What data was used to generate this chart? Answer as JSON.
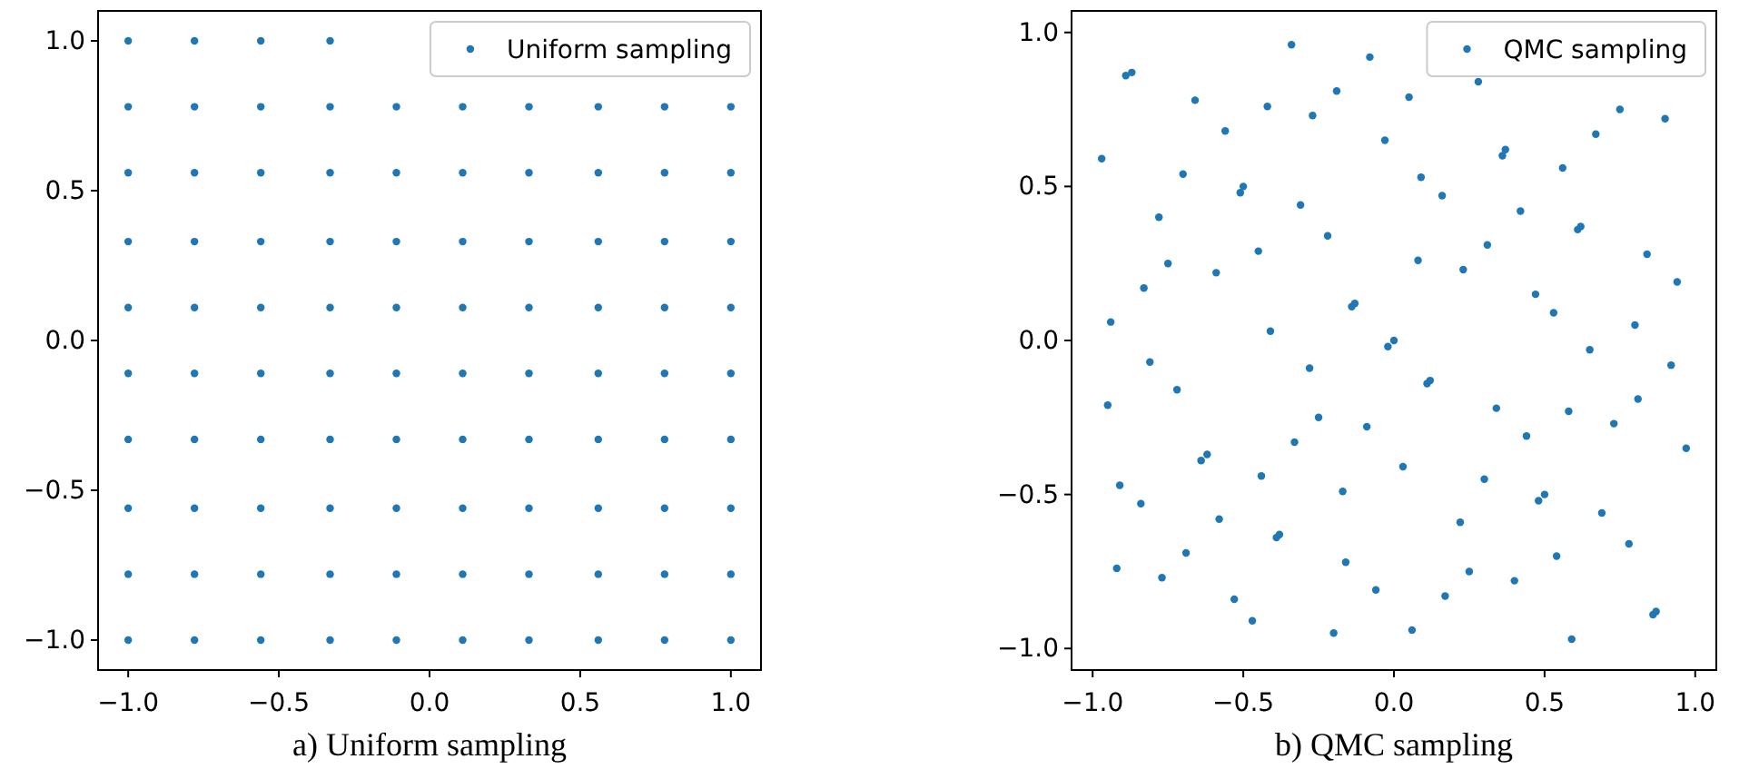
{
  "chart_data": [
    {
      "type": "scatter",
      "title": "a) Uniform sampling",
      "legend": "top right",
      "marker": "circle",
      "grid": false,
      "xlim": [
        -1.1,
        1.1
      ],
      "ylim": [
        -1.1,
        1.1
      ],
      "xticks": [
        {
          "value": -1,
          "label": "−1.0"
        },
        {
          "value": -0.5,
          "label": "−0.5"
        },
        {
          "value": 0,
          "label": "0.0"
        },
        {
          "value": 0.5,
          "label": "0.5"
        },
        {
          "value": 1,
          "label": "1.0"
        }
      ],
      "yticks": [
        {
          "value": -1,
          "label": "−1.0"
        },
        {
          "value": -0.5,
          "label": "−0.5"
        },
        {
          "value": 0,
          "label": "0.0"
        },
        {
          "value": 0.5,
          "label": "0.5"
        },
        {
          "value": 1,
          "label": "1.0"
        }
      ],
      "series": [
        {
          "name": "Uniform sampling",
          "color": "#1f77b4",
          "x": [
            -1,
            -0.78,
            -0.56,
            -0.33,
            -1,
            -0.78,
            -0.56,
            -0.33,
            -0.11,
            0.11,
            0.33,
            0.56,
            0.78,
            1,
            -1,
            -0.78,
            -0.56,
            -0.33,
            -0.11,
            0.11,
            0.33,
            0.56,
            0.78,
            1,
            -1,
            -0.78,
            -0.56,
            -0.33,
            -0.11,
            0.11,
            0.33,
            0.56,
            0.78,
            1,
            -1,
            -0.78,
            -0.56,
            -0.33,
            -0.11,
            0.11,
            0.33,
            0.56,
            0.78,
            1,
            -1,
            -0.78,
            -0.56,
            -0.33,
            -0.11,
            0.11,
            0.33,
            0.56,
            0.78,
            1,
            -1,
            -0.78,
            -0.56,
            -0.33,
            -0.11,
            0.11,
            0.33,
            0.56,
            0.78,
            1,
            -1,
            -0.78,
            -0.56,
            -0.33,
            -0.11,
            0.11,
            0.33,
            0.56,
            0.78,
            1,
            -1,
            -0.78,
            -0.56,
            -0.33,
            -0.11,
            0.11,
            0.33,
            0.56,
            0.78,
            1,
            -1,
            -0.78,
            -0.56,
            -0.33,
            -0.11,
            0.11,
            0.33,
            0.56,
            0.78,
            1
          ],
          "values": [
            1,
            1,
            1,
            1,
            0.78,
            0.78,
            0.78,
            0.78,
            0.78,
            0.78,
            0.78,
            0.78,
            0.78,
            0.78,
            0.56,
            0.56,
            0.56,
            0.56,
            0.56,
            0.56,
            0.56,
            0.56,
            0.56,
            0.56,
            0.33,
            0.33,
            0.33,
            0.33,
            0.33,
            0.33,
            0.33,
            0.33,
            0.33,
            0.33,
            0.11,
            0.11,
            0.11,
            0.11,
            0.11,
            0.11,
            0.11,
            0.11,
            0.11,
            0.11,
            -0.11,
            -0.11,
            -0.11,
            -0.11,
            -0.11,
            -0.11,
            -0.11,
            -0.11,
            -0.11,
            -0.11,
            -0.33,
            -0.33,
            -0.33,
            -0.33,
            -0.33,
            -0.33,
            -0.33,
            -0.33,
            -0.33,
            -0.33,
            -0.56,
            -0.56,
            -0.56,
            -0.56,
            -0.56,
            -0.56,
            -0.56,
            -0.56,
            -0.56,
            -0.56,
            -0.78,
            -0.78,
            -0.78,
            -0.78,
            -0.78,
            -0.78,
            -0.78,
            -0.78,
            -0.78,
            -0.78,
            -1,
            -1,
            -1,
            -1,
            -1,
            -1,
            -1,
            -1,
            -1,
            -1
          ]
        }
      ]
    },
    {
      "type": "scatter",
      "title": "b) QMC sampling",
      "legend": "top right",
      "marker": "circle",
      "grid": false,
      "xlim": [
        -1.07,
        1.07
      ],
      "ylim": [
        -1.07,
        1.07
      ],
      "xticks": [
        {
          "value": -1,
          "label": "−1.0"
        },
        {
          "value": -0.5,
          "label": "−0.5"
        },
        {
          "value": 0,
          "label": "0.0"
        },
        {
          "value": 0.5,
          "label": "0.5"
        },
        {
          "value": 1,
          "label": "1.0"
        }
      ],
      "yticks": [
        {
          "value": -1,
          "label": "−1.0"
        },
        {
          "value": -0.5,
          "label": "−0.5"
        },
        {
          "value": 0,
          "label": "0.0"
        },
        {
          "value": 0.5,
          "label": "0.5"
        },
        {
          "value": 1,
          "label": "1.0"
        }
      ],
      "series": [
        {
          "name": "QMC sampling",
          "color": "#1f77b4",
          "x": [
            -0.97,
            -0.94,
            -0.89,
            -0.87,
            -0.83,
            -0.78,
            -0.75,
            -0.7,
            -0.66,
            -0.59,
            -0.56,
            -0.51,
            -0.5,
            -0.45,
            -0.42,
            -0.41,
            -0.34,
            -0.31,
            -0.27,
            -0.22,
            -0.19,
            -0.14,
            -0.13,
            -0.08,
            -0.03,
            0.05,
            0.08,
            0.09,
            0.16,
            0.23,
            0.28,
            0.31,
            0.36,
            0.37,
            0.42,
            0.47,
            0.53,
            0.56,
            0.61,
            0.62,
            0.67,
            0.75,
            0.8,
            0.84,
            0.9,
            0.94,
            -0.95,
            -0.92,
            -0.91,
            -0.84,
            -0.81,
            -0.77,
            -0.72,
            -0.69,
            -0.64,
            -0.62,
            -0.58,
            -0.53,
            -0.47,
            -0.44,
            -0.39,
            -0.38,
            -0.33,
            -0.28,
            -0.25,
            -0.2,
            -0.17,
            -0.16,
            -0.09,
            -0.06,
            -0.02,
            0,
            0.03,
            0.06,
            0.11,
            0.12,
            0.17,
            0.22,
            0.25,
            0.3,
            0.34,
            0.4,
            0.44,
            0.48,
            0.5,
            0.54,
            0.58,
            0.59,
            0.65,
            0.69,
            0.73,
            0.78,
            0.81,
            0.86,
            0.87,
            0.92,
            0.97
          ],
          "values": [
            0.59,
            0.06,
            0.86,
            0.87,
            0.17,
            0.4,
            0.25,
            0.54,
            0.78,
            0.22,
            0.68,
            0.48,
            0.5,
            0.29,
            0.76,
            0.03,
            0.96,
            0.44,
            0.73,
            0.34,
            0.81,
            0.11,
            0.12,
            0.92,
            0.65,
            0.79,
            0.26,
            0.53,
            0.47,
            0.23,
            0.84,
            0.31,
            0.6,
            0.62,
            0.42,
            0.15,
            0.09,
            0.56,
            0.36,
            0.37,
            0.67,
            0.75,
            0.05,
            0.28,
            0.72,
            0.19,
            -0.21,
            -0.74,
            -0.47,
            -0.53,
            -0.07,
            -0.77,
            -0.16,
            -0.69,
            -0.39,
            -0.37,
            -0.58,
            -0.84,
            -0.91,
            -0.44,
            -0.64,
            -0.63,
            -0.33,
            -0.09,
            -0.25,
            -0.95,
            -0.49,
            -0.72,
            -0.28,
            -0.81,
            -0.02,
            0,
            -0.41,
            -0.94,
            -0.14,
            -0.13,
            -0.83,
            -0.59,
            -0.75,
            -0.45,
            -0.22,
            -0.78,
            -0.31,
            -0.52,
            -0.5,
            -0.7,
            -0.23,
            -0.97,
            -0.03,
            -0.56,
            -0.27,
            -0.66,
            -0.19,
            -0.89,
            -0.88,
            -0.08,
            -0.35
          ]
        }
      ]
    }
  ]
}
